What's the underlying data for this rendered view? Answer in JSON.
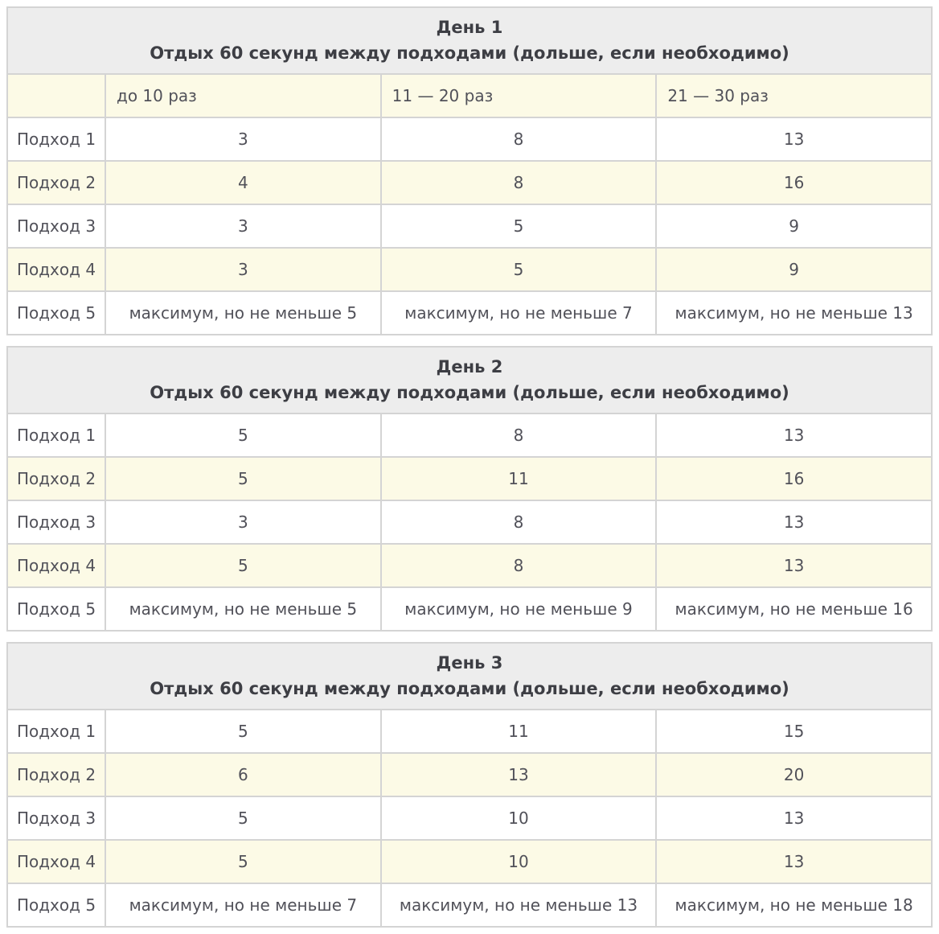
{
  "colors": {
    "day_header_bg": "#ededed",
    "stripe_bg": "#fcfae6",
    "row_bg": "#ffffff",
    "outer_border": "#c4c4c4",
    "inner_border": "#d4d4d4",
    "header_text": "#3d3e44",
    "cell_text": "#515159"
  },
  "tables": [
    {
      "day_title": "День 1",
      "day_subtitle": "Отдых 60 секунд между подходами (дольше, если необходимо)",
      "column_headers": [
        "",
        "до 10 раз",
        "11 — 20 раз",
        "21 — 30 раз"
      ],
      "rows": [
        {
          "label": "Подход 1",
          "cells": [
            "3",
            "8",
            "13"
          ]
        },
        {
          "label": "Подход 2",
          "cells": [
            "4",
            "8",
            "16"
          ]
        },
        {
          "label": "Подход 3",
          "cells": [
            "3",
            "5",
            "9"
          ]
        },
        {
          "label": "Подход 4",
          "cells": [
            "3",
            "5",
            "9"
          ]
        },
        {
          "label": "Подход 5",
          "cells": [
            "максимум, но не меньше 5",
            "максимум, но не меньше 7",
            "максимум, но не меньше 13"
          ]
        }
      ]
    },
    {
      "day_title": "День 2",
      "day_subtitle": "Отдых 60 секунд между подходами (дольше, если необходимо)",
      "rows": [
        {
          "label": "Подход 1",
          "cells": [
            "5",
            "8",
            "13"
          ]
        },
        {
          "label": "Подход 2",
          "cells": [
            "5",
            "11",
            "16"
          ]
        },
        {
          "label": "Подход 3",
          "cells": [
            "3",
            "8",
            "13"
          ]
        },
        {
          "label": "Подход 4",
          "cells": [
            "5",
            "8",
            "13"
          ]
        },
        {
          "label": "Подход 5",
          "cells": [
            "максимум, но не меньше 5",
            "максимум, но не меньше 9",
            "максимум, но не меньше 16"
          ]
        }
      ]
    },
    {
      "day_title": "День 3",
      "day_subtitle": "Отдых 60 секунд между подходами (дольше, если необходимо)",
      "rows": [
        {
          "label": "Подход 1",
          "cells": [
            "5",
            "11",
            "15"
          ]
        },
        {
          "label": "Подход 2",
          "cells": [
            "6",
            "13",
            "20"
          ]
        },
        {
          "label": "Подход 3",
          "cells": [
            "5",
            "10",
            "13"
          ]
        },
        {
          "label": "Подход 4",
          "cells": [
            "5",
            "10",
            "13"
          ]
        },
        {
          "label": "Подход 5",
          "cells": [
            "максимум, но не меньше 7",
            "максимум, но не меньше 13",
            "максимум, но не меньше 18"
          ]
        }
      ]
    }
  ]
}
